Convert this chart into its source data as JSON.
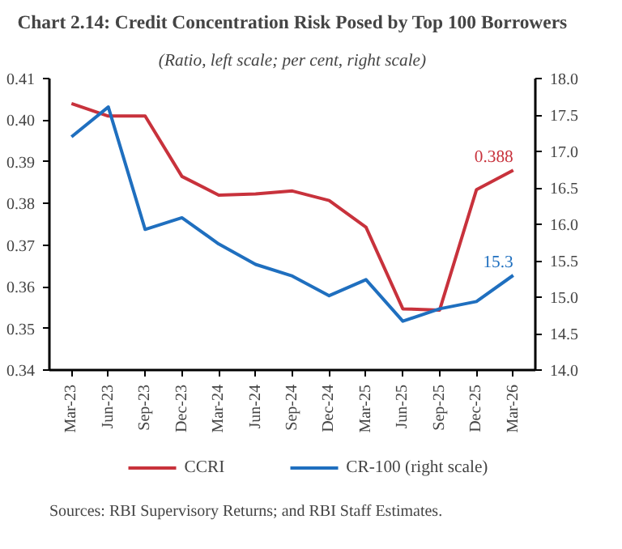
{
  "chart_data": {
    "type": "line",
    "title": "Chart 2.14: Credit Concentration Risk Posed by Top 100 Borrowers",
    "subtitle": "(Ratio, left scale; per cent, right scale)",
    "categories": [
      "Mar-23",
      "Jun-23",
      "Sep-23",
      "Dec-23",
      "Mar-24",
      "Jun-24",
      "Sep-24",
      "Dec-24",
      "Mar-25",
      "Jun-25",
      "Sep-25",
      "Dec-25",
      "Mar-26"
    ],
    "series": [
      {
        "name": "CCRI",
        "color": "#c8323c",
        "values": [
          0.404,
          0.401,
          0.401,
          0.3865,
          0.382,
          0.3823,
          0.383,
          0.3807,
          0.3743,
          0.3547,
          0.3544,
          0.3833,
          0.388
        ],
        "value_labels": [
          null,
          null,
          null,
          null,
          null,
          null,
          null,
          null,
          null,
          null,
          null,
          null,
          "0.388"
        ]
      },
      {
        "name": "CR-100 (right scale)",
        "color": "#1f6fbf",
        "axis": "y2",
        "values": [
          17.2,
          17.61,
          15.93,
          16.09,
          15.73,
          15.45,
          15.29,
          15.02,
          15.24,
          14.67,
          14.84,
          14.94,
          15.3
        ],
        "value_labels": [
          null,
          null,
          null,
          null,
          null,
          null,
          null,
          null,
          null,
          null,
          null,
          null,
          "15.3"
        ]
      }
    ],
    "ylim": [
      0.34,
      0.41
    ],
    "yticks": [
      {
        "value": 0.34,
        "label": "0.34"
      },
      {
        "value": 0.35,
        "label": "0.35"
      },
      {
        "value": 0.36,
        "label": "0.36"
      },
      {
        "value": 0.37,
        "label": "0.37"
      },
      {
        "value": 0.38,
        "label": "0.38"
      },
      {
        "value": 0.39,
        "label": "0.39"
      },
      {
        "value": 0.4,
        "label": "0.40"
      },
      {
        "value": 0.41,
        "label": "0.41"
      }
    ],
    "y2lim": [
      14.0,
      18.0
    ],
    "y2ticks": [
      {
        "value": 14.0,
        "label": "14.0"
      },
      {
        "value": 14.5,
        "label": "14.5"
      },
      {
        "value": 15.0,
        "label": "15.0"
      },
      {
        "value": 15.5,
        "label": "15.5"
      },
      {
        "value": 16.0,
        "label": "16.0"
      },
      {
        "value": 16.5,
        "label": "16.5"
      },
      {
        "value": 17.0,
        "label": "17.0"
      },
      {
        "value": 17.5,
        "label": "17.5"
      },
      {
        "value": 18.0,
        "label": "18.0"
      }
    ],
    "grid": false,
    "legend": "bottom",
    "line_style": "solid",
    "marker": "none",
    "annotations": [
      "Sources: RBI Supervisory Returns; and RBI Staff Estimates."
    ]
  }
}
